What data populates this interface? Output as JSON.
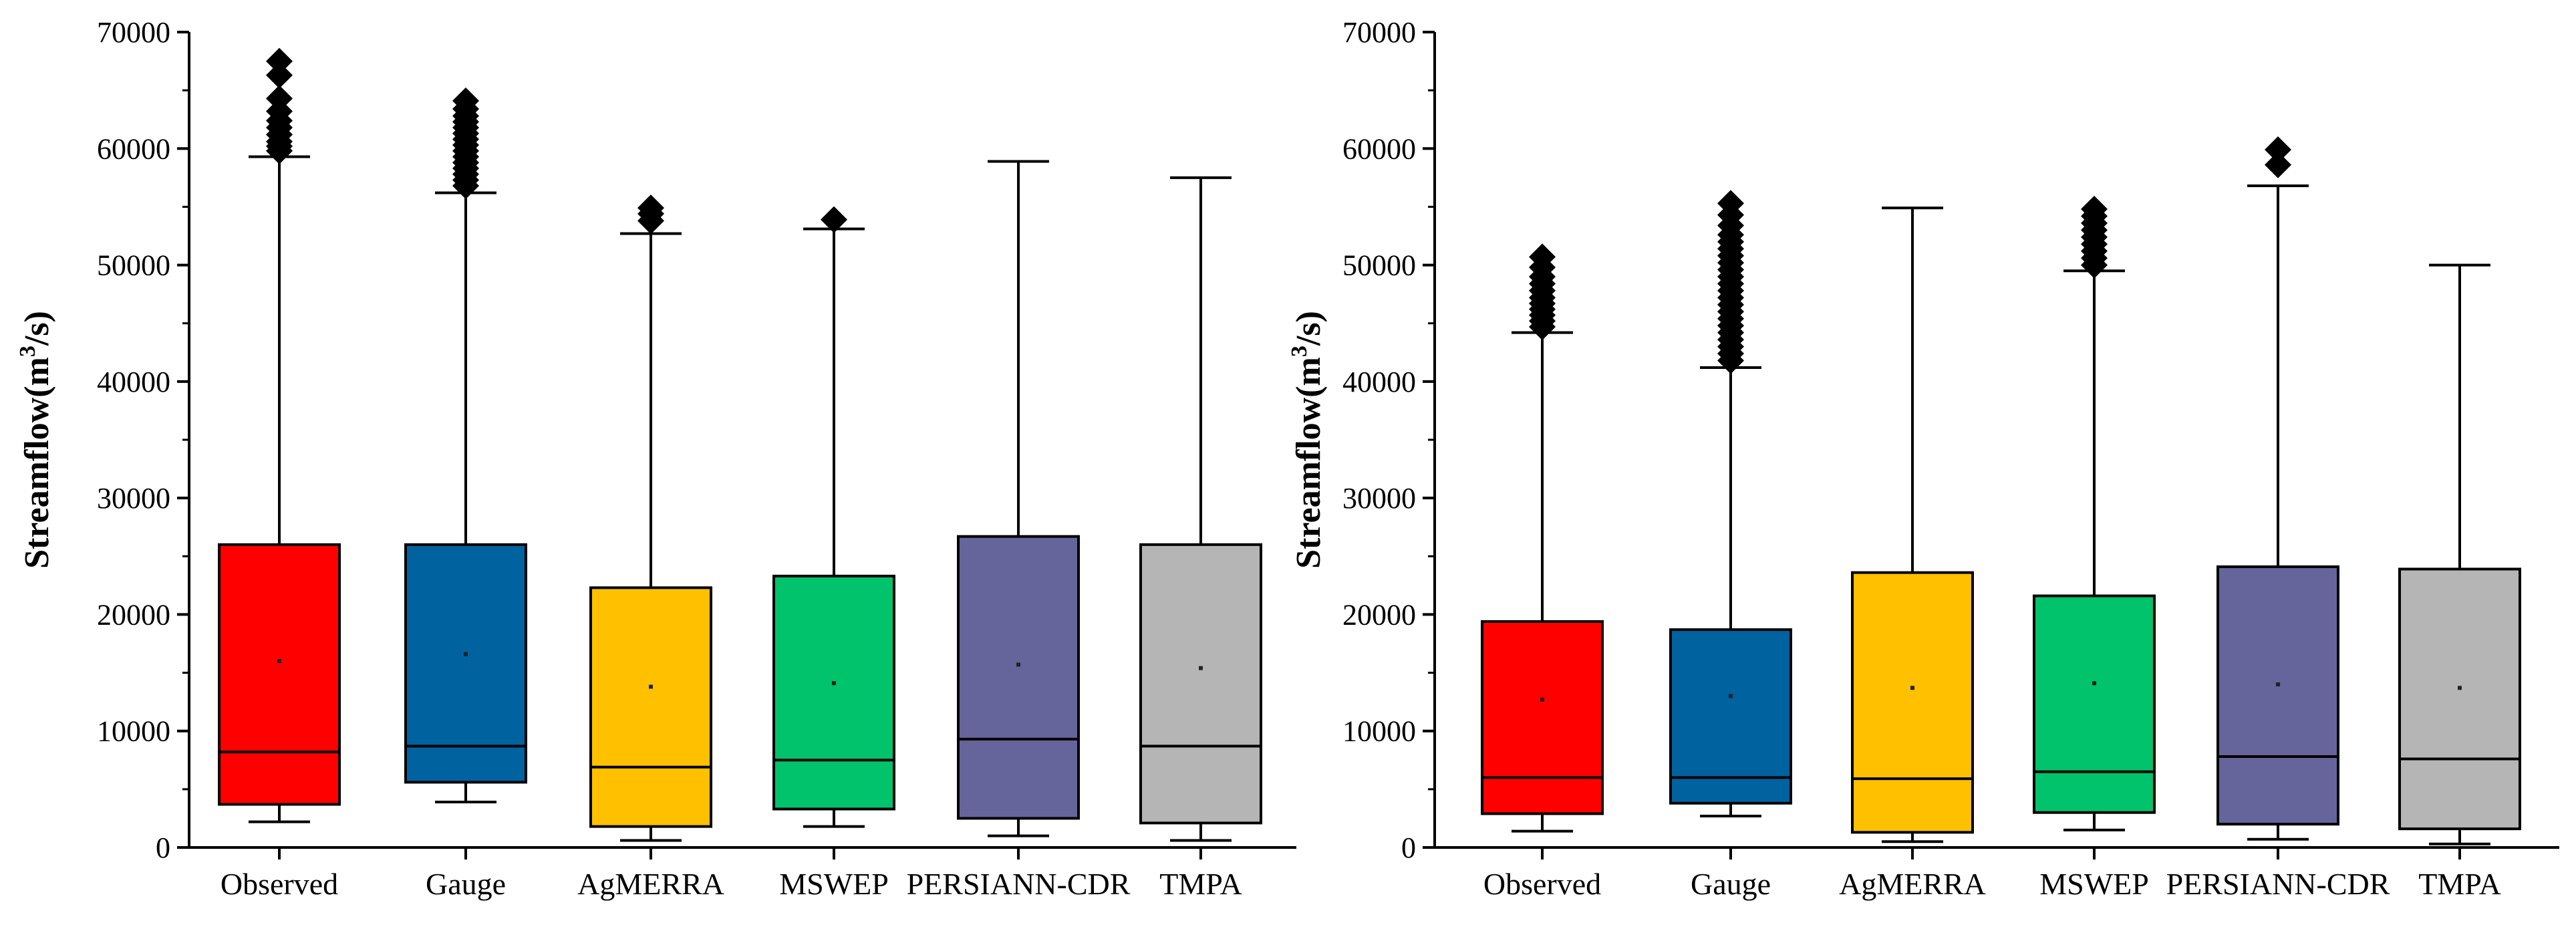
{
  "chart_data": [
    {
      "type": "box",
      "title": "",
      "xlabel": "",
      "ylabel": "Streamflow(m",
      "ylabel_sup": "3",
      "ylabel_suffix": "/s)",
      "ylim": [
        0,
        70000
      ],
      "yticks": [
        0,
        10000,
        20000,
        30000,
        40000,
        50000,
        60000,
        70000
      ],
      "ytick_labels": [
        "0",
        "10000",
        "20000",
        "30000",
        "40000",
        "50000",
        "60000",
        "70000"
      ],
      "categories": [
        "Observed",
        "Gauge",
        "AgMERRA",
        "MSWEP",
        "PERSIANN-CDR",
        "TMPA"
      ],
      "colors": [
        "#ff0000",
        "#00629f",
        "#ffc000",
        "#00c36b",
        "#65649b",
        "#b5b5b5"
      ],
      "boxes": [
        {
          "whisker_low": 2200,
          "q1": 3700,
          "median": 8200,
          "q3": 26000,
          "whisker_high": 59300,
          "mean": 16000,
          "outliers": [
            59800,
            60200,
            60600,
            61200,
            61800,
            62400,
            63200,
            64300,
            66300,
            67500
          ]
        },
        {
          "whisker_low": 3900,
          "q1": 5600,
          "median": 8700,
          "q3": 26000,
          "whisker_high": 56200,
          "mean": 16600,
          "outliers": [
            56800,
            57300,
            57800,
            58300,
            58800,
            59300,
            59800,
            60300,
            60800,
            61300,
            61800,
            62300,
            62800,
            63400,
            64100
          ]
        },
        {
          "whisker_low": 600,
          "q1": 1800,
          "median": 6900,
          "q3": 22300,
          "whisker_high": 52700,
          "mean": 13800,
          "outliers": [
            53800,
            54400,
            54900
          ]
        },
        {
          "whisker_low": 1800,
          "q1": 3300,
          "median": 7500,
          "q3": 23300,
          "whisker_high": 53100,
          "mean": 14100,
          "outliers": [
            53900
          ]
        },
        {
          "whisker_low": 1000,
          "q1": 2500,
          "median": 9300,
          "q3": 26700,
          "whisker_high": 58900,
          "mean": 15700,
          "outliers": []
        },
        {
          "whisker_low": 600,
          "q1": 2100,
          "median": 8700,
          "q3": 26000,
          "whisker_high": 57500,
          "mean": 15400,
          "outliers": []
        }
      ]
    },
    {
      "type": "box",
      "title": "",
      "xlabel": "",
      "ylabel": "Streamflow(m",
      "ylabel_sup": "3",
      "ylabel_suffix": "/s)",
      "ylim": [
        0,
        70000
      ],
      "yticks": [
        0,
        10000,
        20000,
        30000,
        40000,
        50000,
        60000,
        70000
      ],
      "ytick_labels": [
        "0",
        "10000",
        "20000",
        "30000",
        "40000",
        "50000",
        "60000",
        "70000"
      ],
      "categories": [
        "Observed",
        "Gauge",
        "AgMERRA",
        "MSWEP",
        "PERSIANN-CDR",
        "TMPA"
      ],
      "colors": [
        "#ff0000",
        "#00629f",
        "#ffc000",
        "#00c36b",
        "#65649b",
        "#b5b5b5"
      ],
      "boxes": [
        {
          "whisker_low": 1400,
          "q1": 2900,
          "median": 6000,
          "q3": 19400,
          "whisker_high": 44200,
          "mean": 12700,
          "outliers": [
            44700,
            45200,
            45700,
            46200,
            46700,
            47200,
            47800,
            48400,
            49000,
            49800,
            50700
          ]
        },
        {
          "whisker_low": 2700,
          "q1": 3800,
          "median": 6000,
          "q3": 18700,
          "whisker_high": 41200,
          "mean": 13000,
          "outliers": [
            41800,
            42400,
            43000,
            43600,
            44200,
            44800,
            45400,
            46000,
            46600,
            47200,
            47800,
            48400,
            49000,
            49600,
            50200,
            50800,
            51400,
            52000,
            52600,
            53400,
            54300,
            55300
          ]
        },
        {
          "whisker_low": 500,
          "q1": 1300,
          "median": 5900,
          "q3": 23600,
          "whisker_high": 54900,
          "mean": 13700,
          "outliers": []
        },
        {
          "whisker_low": 1500,
          "q1": 3000,
          "median": 6500,
          "q3": 21600,
          "whisker_high": 49500,
          "mean": 14100,
          "outliers": [
            50000,
            50600,
            51200,
            51800,
            52400,
            53000,
            53600,
            54200,
            54800
          ]
        },
        {
          "whisker_low": 700,
          "q1": 2000,
          "median": 7800,
          "q3": 24100,
          "whisker_high": 56800,
          "mean": 14000,
          "outliers": [
            58600,
            59900
          ]
        },
        {
          "whisker_low": 300,
          "q1": 1600,
          "median": 7600,
          "q3": 23900,
          "whisker_high": 50000,
          "mean": 13700,
          "outliers": []
        }
      ]
    }
  ]
}
